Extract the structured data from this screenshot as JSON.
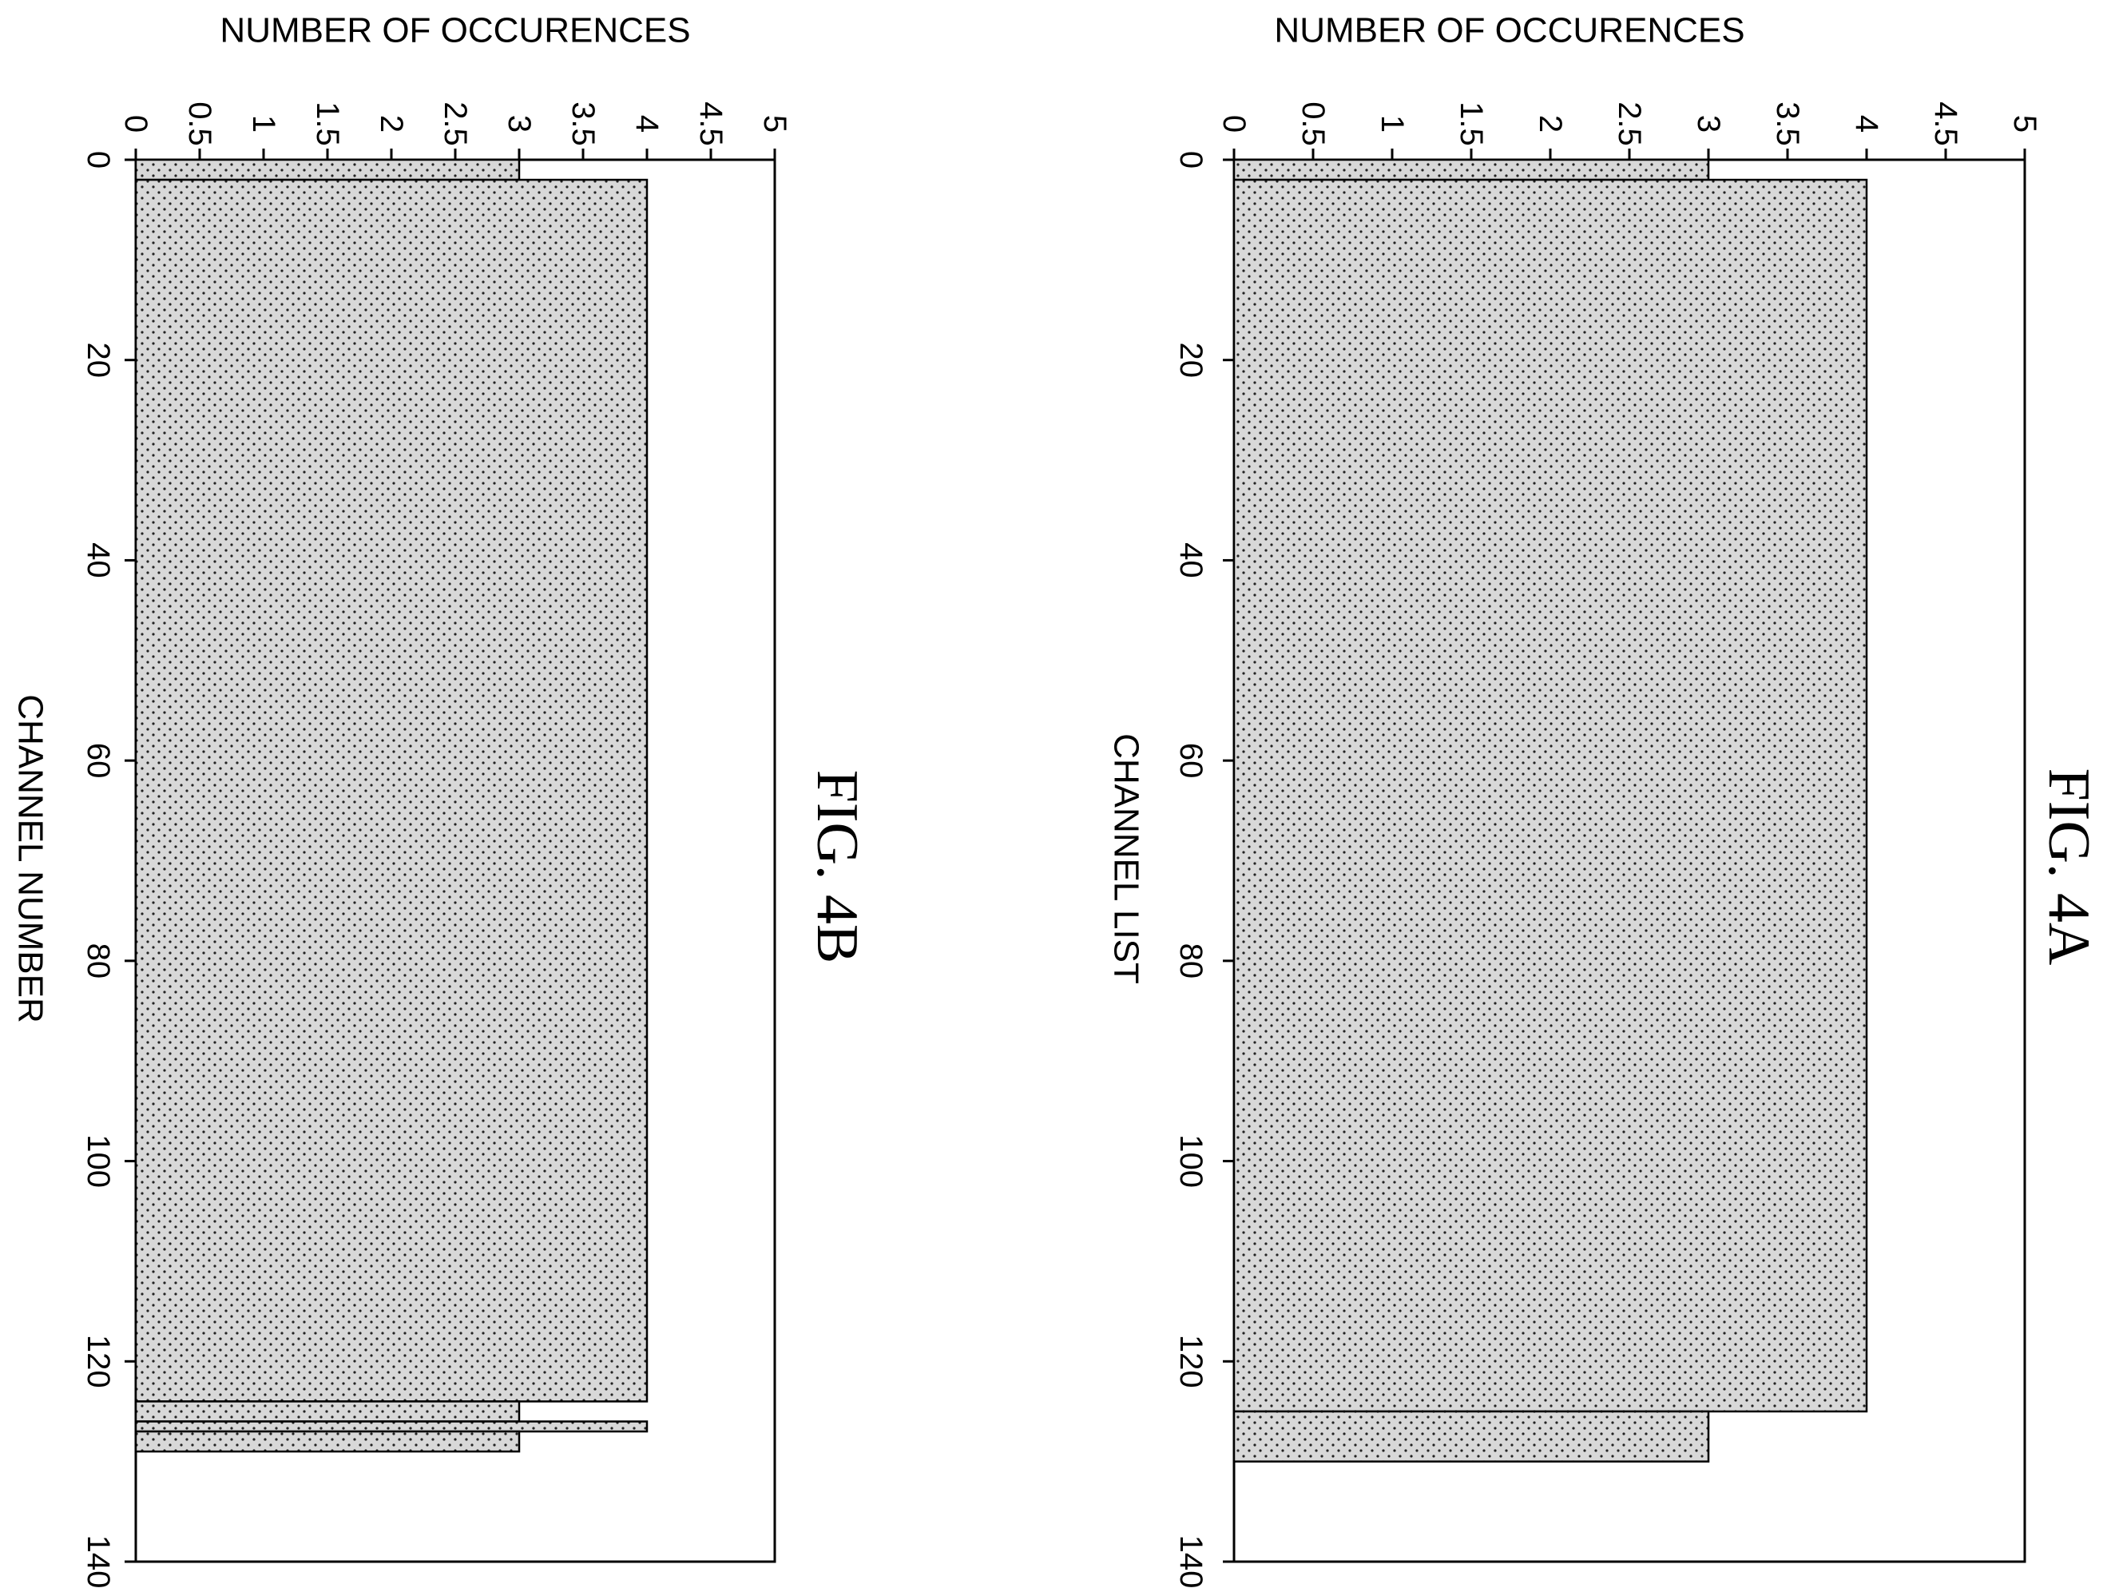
{
  "chart_data": [
    {
      "type": "bar",
      "title": "FIG. 4A",
      "xlabel": "CHANNEL LIST",
      "ylabel": "NUMBER OF OCCURENCES",
      "orientation": "rotated 90° clockwise on page",
      "x_ticks": [
        "0",
        "20",
        "40",
        "60",
        "80",
        "100",
        "120",
        "140"
      ],
      "y_ticks": [
        "0",
        "0.5",
        "1",
        "1.5",
        "2",
        "2.5",
        "3",
        "3.5",
        "4",
        "4.5",
        "5"
      ],
      "xlim": [
        0,
        140
      ],
      "ylim": [
        0,
        5
      ],
      "grid": false,
      "fill": "dotted",
      "segments": [
        {
          "x_start": 0,
          "x_end": 2,
          "value": 3
        },
        {
          "x_start": 2,
          "x_end": 125,
          "value": 4
        },
        {
          "x_start": 125,
          "x_end": 130,
          "value": 3
        }
      ]
    },
    {
      "type": "bar",
      "title": "FIG. 4B",
      "xlabel": "CHANNEL NUMBER",
      "ylabel": "NUMBER OF OCCURENCES",
      "orientation": "rotated 90° clockwise on page",
      "x_ticks": [
        "0",
        "20",
        "40",
        "60",
        "80",
        "100",
        "120",
        "140"
      ],
      "y_ticks": [
        "0",
        "0.5",
        "1",
        "1.5",
        "2",
        "2.5",
        "3",
        "3.5",
        "4",
        "4.5",
        "5"
      ],
      "xlim": [
        0,
        140
      ],
      "ylim": [
        0,
        5
      ],
      "grid": false,
      "fill": "dotted",
      "segments": [
        {
          "x_start": 0,
          "x_end": 2,
          "value": 3
        },
        {
          "x_start": 2,
          "x_end": 124,
          "value": 4
        },
        {
          "x_start": 124,
          "x_end": 126,
          "value": 3
        },
        {
          "x_start": 126,
          "x_end": 127,
          "value": 4
        },
        {
          "x_start": 127,
          "x_end": 129,
          "value": 3
        }
      ]
    }
  ]
}
